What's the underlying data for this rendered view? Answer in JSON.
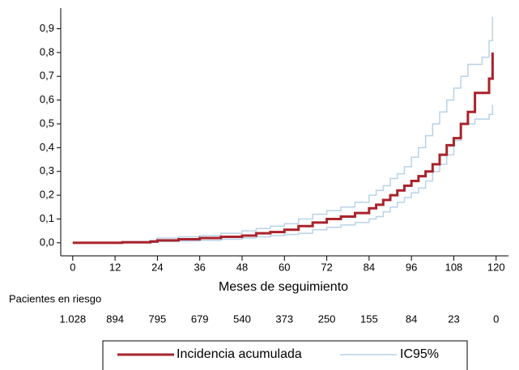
{
  "chart_data": {
    "type": "step",
    "x_label": "Meses de seguimiento",
    "x": [
      0,
      14,
      22,
      24,
      30,
      36,
      42,
      48,
      52,
      56,
      60,
      64,
      68,
      72,
      76,
      80,
      84,
      86,
      88,
      90,
      92,
      94,
      96,
      98,
      100,
      102,
      104,
      106,
      108,
      110,
      112,
      114,
      116,
      118,
      119
    ],
    "series": [
      {
        "name": "Incidencia acumulada",
        "color": "#a8232b",
        "values": [
          0,
          0.002,
          0.005,
          0.01,
          0.015,
          0.02,
          0.025,
          0.03,
          0.04,
          0.045,
          0.055,
          0.07,
          0.085,
          0.1,
          0.11,
          0.125,
          0.145,
          0.16,
          0.18,
          0.2,
          0.22,
          0.24,
          0.26,
          0.28,
          0.3,
          0.33,
          0.37,
          0.41,
          0.44,
          0.5,
          0.55,
          0.63,
          0.63,
          0.69,
          0.8
        ]
      },
      {
        "name": "IC95%",
        "color": "#b9d3e8",
        "upper": [
          0,
          0.005,
          0.01,
          0.02,
          0.025,
          0.03,
          0.04,
          0.05,
          0.06,
          0.07,
          0.08,
          0.1,
          0.12,
          0.135,
          0.15,
          0.17,
          0.2,
          0.22,
          0.24,
          0.27,
          0.29,
          0.32,
          0.36,
          0.4,
          0.45,
          0.5,
          0.55,
          0.6,
          0.65,
          0.7,
          0.75,
          0.75,
          0.78,
          0.85,
          0.95
        ],
        "lower": [
          0,
          0,
          0.002,
          0.005,
          0.007,
          0.01,
          0.015,
          0.02,
          0.025,
          0.03,
          0.035,
          0.04,
          0.055,
          0.065,
          0.075,
          0.085,
          0.1,
          0.11,
          0.13,
          0.15,
          0.17,
          0.19,
          0.21,
          0.23,
          0.26,
          0.3,
          0.33,
          0.37,
          0.43,
          0.5,
          0.5,
          0.52,
          0.52,
          0.54,
          0.58
        ]
      }
    ],
    "xlim": [
      -3.4,
      123.5
    ],
    "xticks": [
      0,
      12,
      24,
      36,
      48,
      60,
      72,
      84,
      96,
      108,
      120
    ],
    "ylim": [
      -0.055,
      0.98
    ],
    "yticks": [
      {
        "value": 0,
        "label": "0,0"
      },
      {
        "value": 0.1,
        "label": "0,1"
      },
      {
        "value": 0.2,
        "label": "0,2"
      },
      {
        "value": 0.3,
        "label": "0,3"
      },
      {
        "value": 0.4,
        "label": "0,4"
      },
      {
        "value": 0.5,
        "label": "0,5"
      },
      {
        "value": 0.6,
        "label": "0,6"
      },
      {
        "value": 0.7,
        "label": "0,7"
      },
      {
        "value": 0.8,
        "label": "0,8"
      },
      {
        "value": 0.9,
        "label": "0,9"
      }
    ],
    "risk_table": {
      "title": "Pacientes en riesgo",
      "values": [
        1028,
        894,
        795,
        679,
        540,
        373,
        250,
        155,
        84,
        23,
        0
      ],
      "value_labels": [
        "1.028",
        "894",
        "795",
        "679",
        "540",
        "373",
        "250",
        "155",
        "84",
        "23",
        "0"
      ]
    },
    "legend": "bottom"
  }
}
